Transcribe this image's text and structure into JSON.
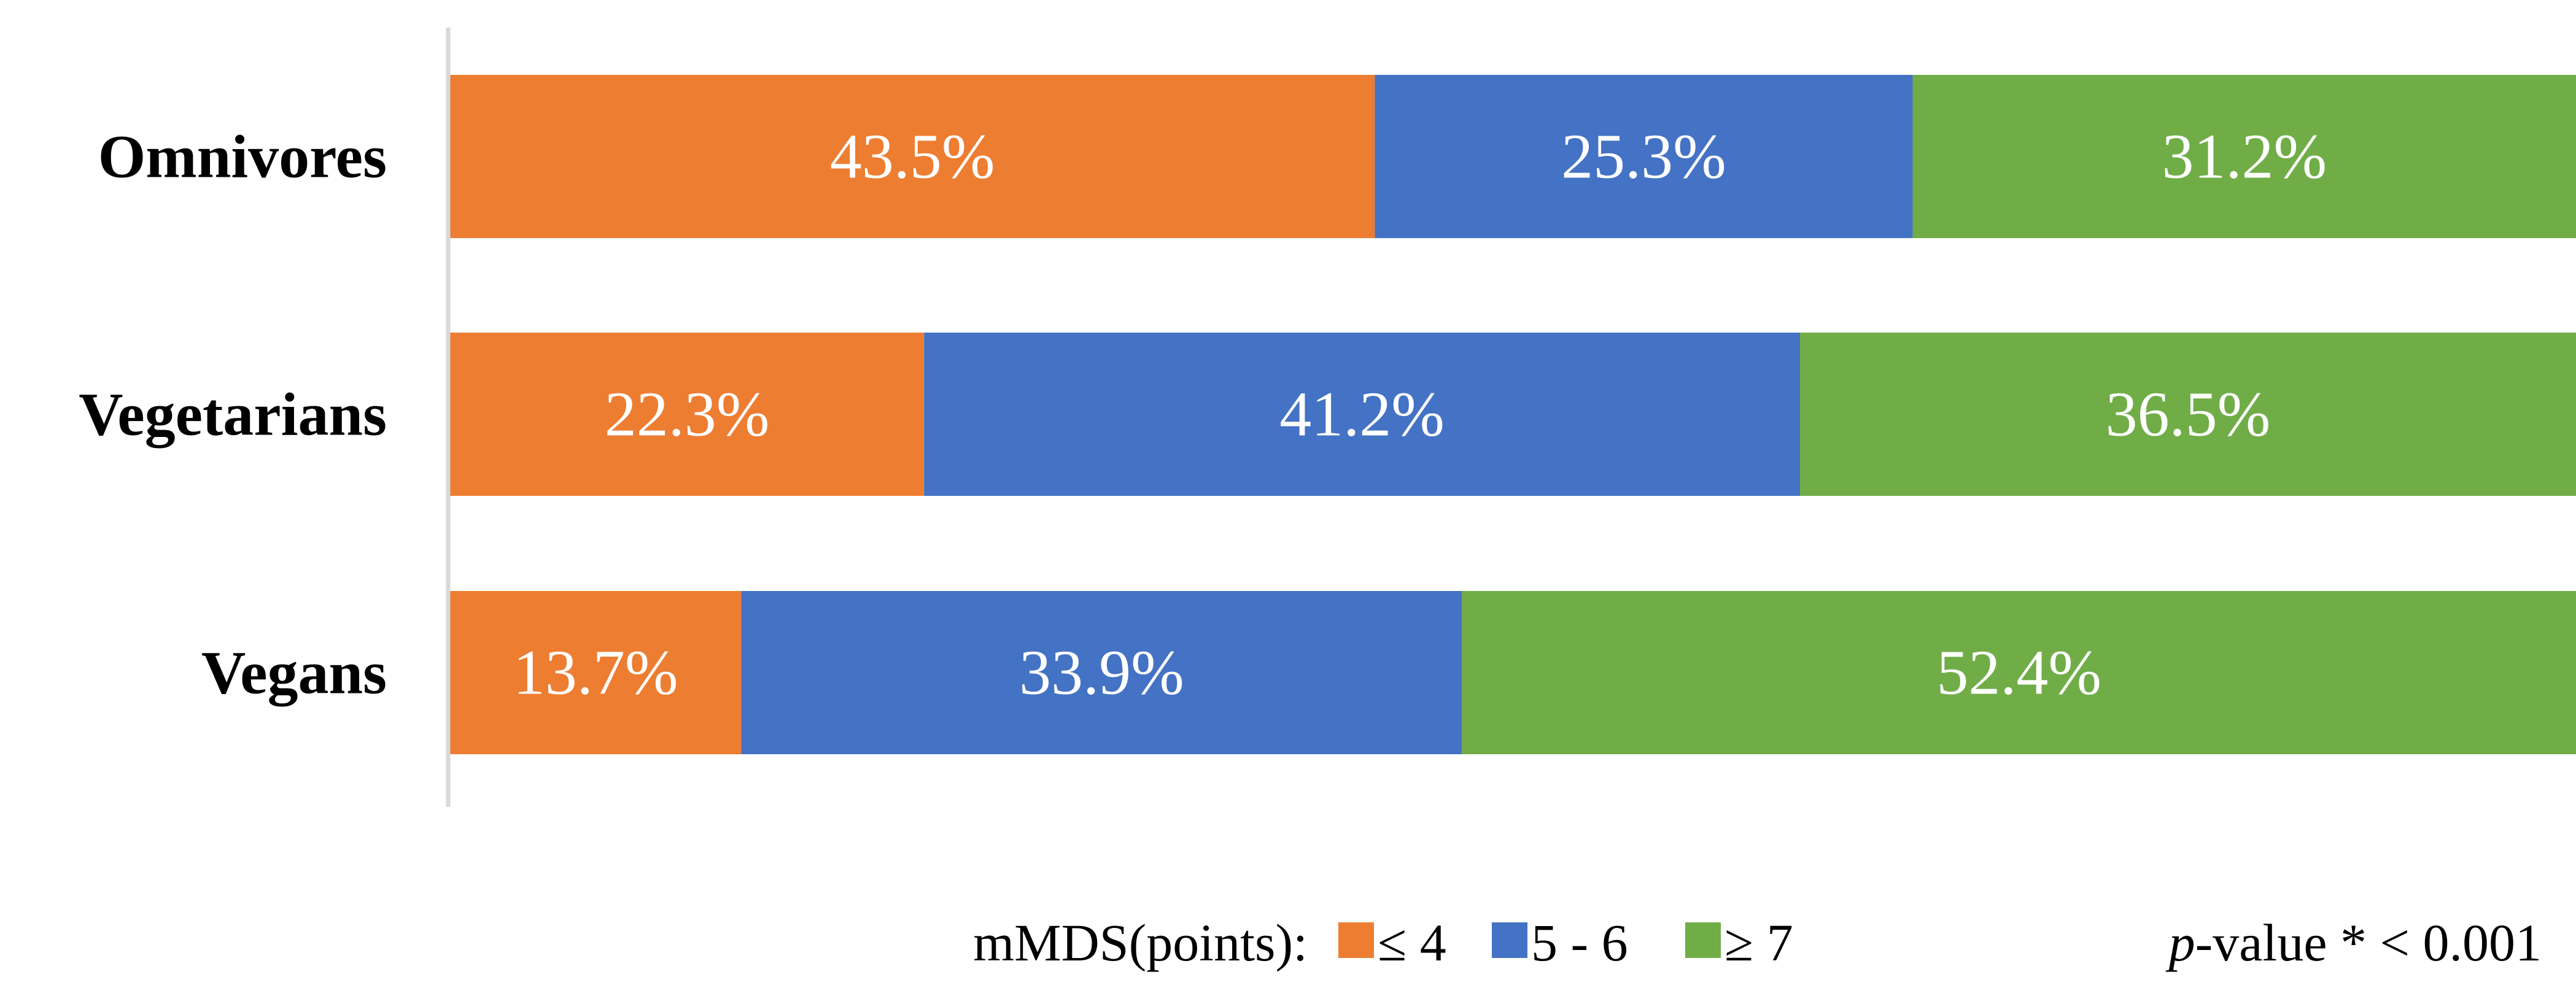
{
  "chart_data": {
    "type": "bar",
    "orientation": "horizontal",
    "stacked": true,
    "percent_stacked": true,
    "categories": [
      "Omnivores",
      "Vegetarians",
      "Vegans"
    ],
    "series": [
      {
        "name": "≤ 4",
        "values": [
          43.5,
          22.3,
          13.7
        ],
        "labels": [
          "43.5%",
          "22.3%",
          "13.7%"
        ],
        "color": "#ED7D31"
      },
      {
        "name": "5 - 6",
        "values": [
          25.3,
          41.2,
          33.9
        ],
        "labels": [
          "25.3%",
          "41.2%",
          "33.9%"
        ],
        "color": "#4472C4"
      },
      {
        "name": "≥ 7",
        "values": [
          31.2,
          36.5,
          52.4
        ],
        "labels": [
          "31.2%",
          "36.5%",
          "52.4%"
        ],
        "color": "#70AD47"
      }
    ],
    "xlim": [
      0,
      100
    ],
    "grid": false,
    "legend": {
      "placement": "bottom",
      "title": "mMDS(points):"
    },
    "annotation": {
      "italic": "p",
      "text": "-value * < 0.001"
    }
  },
  "colors": {
    "axis": "#D9D9D9",
    "label_text": "#000000",
    "data_label_text": "#FFFFFF"
  }
}
